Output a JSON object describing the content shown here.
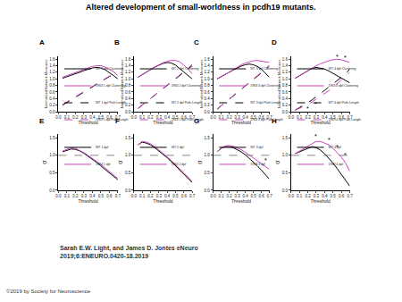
{
  "title": "Altered development of small-worldness in pcdh19 mutants.",
  "caption": [
    "Sarah E.W. Light, and James D. Jontes eNeuro",
    "2019;6:ENEURO.0420-18.2019"
  ],
  "copyright": "©2019 by Society for Neuroscience",
  "chart_data": [
    {
      "type": "line",
      "panel": "A",
      "x_label": "Threshold",
      "y_label": "Normalized Network Measures",
      "legend": "top left",
      "x": [
        0.05,
        0.1,
        0.15,
        0.2,
        0.25,
        0.3,
        0.35,
        0.4,
        0.45,
        0.5,
        0.55,
        0.6,
        0.65,
        0.7
      ],
      "xlim": [
        0,
        0.7
      ],
      "xticks": [
        {
          "value": 0,
          "label": "0.0"
        },
        0.1,
        0.2,
        0.3,
        0.4,
        0.5,
        0.6,
        0.7
      ],
      "ylim": [
        0,
        1.7
      ],
      "yticks": [
        {
          "value": 0,
          "label": "0.0"
        },
        0.2,
        0.4,
        0.6,
        0.8,
        {
          "value": 1,
          "label": "1.0"
        },
        1.2,
        1.4,
        1.6
      ],
      "series": [
        {
          "name": "WT 1 dpf Clustering",
          "color": "#000000",
          "line_style": "solid",
          "values": [
            1.02,
            1.06,
            1.1,
            1.15,
            1.2,
            1.25,
            1.3,
            1.33,
            1.35,
            1.33,
            1.28,
            1.2,
            1.1,
            1.0
          ]
        },
        {
          "name": "1963 1 dpf Clustering",
          "color": "#cc44bb",
          "line_style": "solid",
          "values": [
            1.05,
            1.1,
            1.15,
            1.2,
            1.25,
            1.3,
            1.35,
            1.38,
            1.4,
            1.4,
            1.36,
            1.3,
            1.22,
            1.1
          ]
        },
        {
          "name": "WT 1 dpf Path Length",
          "color": "#000000",
          "line_style": "dash",
          "values": [
            0.2,
            0.28,
            0.36,
            0.44,
            0.52,
            0.6,
            0.68,
            0.76,
            0.84,
            0.92,
            1.0,
            1.07,
            1.13,
            1.2
          ]
        },
        {
          "name": "1963 1 dpf Path Length",
          "color": "#cc44bb",
          "line_style": "dash",
          "values": [
            0.22,
            0.3,
            0.38,
            0.46,
            0.54,
            0.62,
            0.7,
            0.78,
            0.86,
            0.94,
            1.02,
            1.1,
            1.16,
            1.22
          ]
        }
      ],
      "annotations": []
    },
    {
      "type": "line",
      "panel": "B",
      "x_label": "Threshold",
      "y_label": "Normalized Network Measures",
      "legend": "top left",
      "x": [
        0.05,
        0.1,
        0.15,
        0.2,
        0.25,
        0.3,
        0.35,
        0.4,
        0.45,
        0.5,
        0.55,
        0.6,
        0.65,
        0.7
      ],
      "xlim": [
        0,
        0.7
      ],
      "xticks": [
        {
          "value": 0,
          "label": "0.0"
        },
        0.1,
        0.2,
        0.3,
        0.4,
        0.5,
        0.6,
        0.7
      ],
      "ylim": [
        0,
        1.7
      ],
      "yticks": [
        {
          "value": 0,
          "label": "0.0"
        },
        0.2,
        0.4,
        0.6,
        0.8,
        {
          "value": 1,
          "label": "1.0"
        },
        1.2,
        1.4,
        1.6
      ],
      "series": [
        {
          "name": "WT 2 dpf Clustering",
          "color": "#000000",
          "line_style": "solid",
          "values": [
            1.05,
            1.12,
            1.2,
            1.28,
            1.36,
            1.42,
            1.47,
            1.5,
            1.48,
            1.42,
            1.32,
            1.2,
            1.1,
            1.0
          ]
        },
        {
          "name": "1963 2 dpf Clustering",
          "color": "#cc44bb",
          "line_style": "solid",
          "values": [
            1.05,
            1.12,
            1.2,
            1.28,
            1.36,
            1.43,
            1.49,
            1.53,
            1.56,
            1.56,
            1.52,
            1.42,
            1.3,
            1.15
          ]
        },
        {
          "name": "WT 2 dpf Path Length",
          "color": "#000000",
          "line_style": "dash",
          "values": [
            0.1,
            0.2,
            0.3,
            0.4,
            0.5,
            0.6,
            0.7,
            0.8,
            0.9,
            1.0,
            1.1,
            1.2,
            1.3,
            1.4
          ]
        },
        {
          "name": "1963 2 dpf Path Length",
          "color": "#cc44bb",
          "line_style": "dash",
          "values": [
            0.1,
            0.2,
            0.3,
            0.4,
            0.5,
            0.6,
            0.7,
            0.8,
            0.9,
            1.0,
            1.1,
            1.2,
            1.32,
            1.45
          ]
        }
      ],
      "annotations": []
    },
    {
      "type": "line",
      "panel": "C",
      "x_label": "Threshold",
      "y_label": "Normalized Network Measures",
      "legend": "top left",
      "x": [
        0.05,
        0.1,
        0.15,
        0.2,
        0.25,
        0.3,
        0.35,
        0.4,
        0.45,
        0.5,
        0.55,
        0.6,
        0.65,
        0.7
      ],
      "xlim": [
        0,
        0.7
      ],
      "xticks": [
        {
          "value": 0,
          "label": "0.0"
        },
        0.1,
        0.2,
        0.3,
        0.4,
        0.5,
        0.6,
        0.7
      ],
      "ylim": [
        0,
        1.7
      ],
      "yticks": [
        {
          "value": 0,
          "label": "0.0"
        },
        0.2,
        0.4,
        0.6,
        0.8,
        {
          "value": 1,
          "label": "1.0"
        },
        1.2,
        1.4,
        1.6
      ],
      "series": [
        {
          "name": "WT 3 dpf Clustering",
          "color": "#000000",
          "line_style": "solid",
          "values": [
            1.0,
            1.06,
            1.13,
            1.2,
            1.27,
            1.34,
            1.39,
            1.43,
            1.45,
            1.43,
            1.38,
            1.3,
            1.18,
            1.05
          ]
        },
        {
          "name": "1963 3 dpf Clustering",
          "color": "#cc44bb",
          "line_style": "solid",
          "values": [
            1.0,
            1.06,
            1.13,
            1.2,
            1.28,
            1.36,
            1.43,
            1.48,
            1.52,
            1.55,
            1.56,
            1.54,
            1.52,
            1.5
          ]
        },
        {
          "name": "WT 3 dpf Path Length",
          "color": "#000000",
          "line_style": "dash",
          "values": [
            0.08,
            0.18,
            0.28,
            0.38,
            0.48,
            0.58,
            0.68,
            0.78,
            0.88,
            0.98,
            1.08,
            1.18,
            1.28,
            1.38
          ]
        },
        {
          "name": "1963 3 dpf Path Length",
          "color": "#cc44bb",
          "line_style": "dash",
          "values": [
            0.08,
            0.18,
            0.28,
            0.38,
            0.48,
            0.58,
            0.68,
            0.78,
            0.88,
            0.98,
            1.08,
            1.2,
            1.3,
            1.42
          ]
        }
      ],
      "annotations": []
    },
    {
      "type": "line",
      "panel": "D",
      "x_label": "Threshold",
      "y_label": "Normalized Network Measures",
      "legend": "top left",
      "x": [
        0.05,
        0.1,
        0.15,
        0.2,
        0.25,
        0.3,
        0.35,
        0.4,
        0.45,
        0.5,
        0.55,
        0.6,
        0.65,
        0.7
      ],
      "xlim": [
        0,
        0.7
      ],
      "xticks": [
        {
          "value": 0,
          "label": "0.0"
        },
        0.1,
        0.2,
        0.3,
        0.4,
        0.5,
        0.6,
        0.7
      ],
      "ylim": [
        0,
        1.7
      ],
      "yticks": [
        {
          "value": 0,
          "label": "0.0"
        },
        0.2,
        0.4,
        0.6,
        0.8,
        {
          "value": 1,
          "label": "1.0"
        },
        1.2,
        1.4,
        1.6
      ],
      "series": [
        {
          "name": "WT 4 dpf Clustering",
          "color": "#000000",
          "line_style": "solid",
          "values": [
            1.02,
            1.1,
            1.18,
            1.26,
            1.32,
            1.35,
            1.33,
            1.3,
            1.24,
            1.17,
            1.1,
            1.02,
            0.95,
            0.88
          ]
        },
        {
          "name": "1963 4 dpf Clustering",
          "color": "#cc44bb",
          "line_style": "solid",
          "values": [
            1.02,
            1.1,
            1.18,
            1.26,
            1.33,
            1.4,
            1.46,
            1.51,
            1.55,
            1.58,
            1.6,
            1.58,
            1.55,
            1.5
          ]
        },
        {
          "name": "WT 4 dpf Path Length",
          "color": "#000000",
          "line_style": "dash",
          "values": [
            0.05,
            0.12,
            0.2,
            0.28,
            0.36,
            0.45,
            0.55,
            0.65,
            0.75,
            0.85,
            0.95,
            1.05,
            1.15,
            1.3
          ]
        },
        {
          "name": "1963 4 dpf Path Length",
          "color": "#cc44bb",
          "line_style": "dash",
          "values": [
            0.05,
            0.1,
            0.16,
            0.22,
            0.3,
            0.38,
            0.46,
            0.55,
            0.64,
            0.74,
            0.85,
            0.96,
            1.08,
            1.2
          ]
        }
      ],
      "annotations": [
        {
          "x": 0.55,
          "y": 1.68,
          "text": "*"
        },
        {
          "x": 0.65,
          "y": 1.64,
          "text": "*"
        },
        {
          "x": 0.2,
          "y": 0.1,
          "text": "*"
        },
        {
          "x": 0.3,
          "y": 0.22,
          "text": "*"
        }
      ]
    },
    {
      "type": "line",
      "panel": "E",
      "x_label": "Threshold",
      "y_label": "σ",
      "legend": "top left",
      "reference_line": 1.0,
      "x": [
        0.05,
        0.1,
        0.15,
        0.2,
        0.25,
        0.3,
        0.35,
        0.4,
        0.45,
        0.5,
        0.55,
        0.6,
        0.65,
        0.7
      ],
      "xlim": [
        0,
        0.7
      ],
      "xticks": [
        {
          "value": 0,
          "label": "0.0"
        },
        0.1,
        0.2,
        0.3,
        0.4,
        0.5,
        0.6,
        0.7
      ],
      "ylim": [
        0,
        1.6
      ],
      "yticks": [
        {
          "value": 0,
          "label": "0.0"
        },
        0.5,
        {
          "value": 1,
          "label": "1.0"
        },
        1.5
      ],
      "series": [
        {
          "name": "WT 1 dpf",
          "color": "#000000",
          "line_style": "solid",
          "values": [
            1.1,
            1.15,
            1.18,
            1.17,
            1.13,
            1.06,
            0.98,
            0.9,
            0.8,
            0.7,
            0.6,
            0.5,
            0.4,
            0.3
          ]
        },
        {
          "name": "1963 1 dpf",
          "color": "#cc44bb",
          "line_style": "solid",
          "values": [
            1.12,
            1.18,
            1.22,
            1.2,
            1.15,
            1.08,
            1.0,
            0.92,
            0.83,
            0.74,
            0.64,
            0.54,
            0.44,
            0.34
          ]
        }
      ],
      "annotations": []
    },
    {
      "type": "line",
      "panel": "F",
      "x_label": "Threshold",
      "y_label": "σ",
      "legend": "top left",
      "reference_line": 1.0,
      "x": [
        0.05,
        0.1,
        0.15,
        0.2,
        0.25,
        0.3,
        0.35,
        0.4,
        0.45,
        0.5,
        0.55,
        0.6,
        0.65,
        0.7
      ],
      "xlim": [
        0,
        0.7
      ],
      "xticks": [
        {
          "value": 0,
          "label": "0.0"
        },
        0.1,
        0.2,
        0.3,
        0.4,
        0.5,
        0.6,
        0.7
      ],
      "ylim": [
        0,
        1.6
      ],
      "yticks": [
        {
          "value": 0,
          "label": "0.0"
        },
        0.5,
        {
          "value": 1,
          "label": "1.0"
        },
        1.5
      ],
      "series": [
        {
          "name": "WT 2 dpf",
          "color": "#000000",
          "line_style": "solid",
          "values": [
            1.3,
            1.38,
            1.35,
            1.3,
            1.22,
            1.13,
            1.03,
            0.93,
            0.82,
            0.7,
            0.58,
            0.46,
            0.34,
            0.22
          ]
        },
        {
          "name": "1963 2 dpf",
          "color": "#cc44bb",
          "line_style": "solid",
          "values": [
            1.3,
            1.4,
            1.38,
            1.33,
            1.25,
            1.16,
            1.06,
            0.96,
            0.85,
            0.74,
            0.62,
            0.5,
            0.38,
            0.26
          ]
        }
      ],
      "annotations": []
    },
    {
      "type": "line",
      "panel": "G",
      "x_label": "Threshold",
      "y_label": "σ",
      "legend": "top left",
      "reference_line": 1.0,
      "x": [
        0.05,
        0.1,
        0.15,
        0.2,
        0.25,
        0.3,
        0.35,
        0.4,
        0.45,
        0.5,
        0.55,
        0.6,
        0.65,
        0.7
      ],
      "xlim": [
        0,
        0.7
      ],
      "xticks": [
        {
          "value": 0,
          "label": "0.0"
        },
        0.1,
        0.2,
        0.3,
        0.4,
        0.5,
        0.6,
        0.7
      ],
      "ylim": [
        0,
        1.6
      ],
      "yticks": [
        {
          "value": 0,
          "label": "0.0"
        },
        0.5,
        {
          "value": 1,
          "label": "1.0"
        },
        1.5
      ],
      "series": [
        {
          "name": "WT 3 dpf",
          "color": "#000000",
          "line_style": "solid",
          "values": [
            1.1,
            1.2,
            1.25,
            1.25,
            1.22,
            1.17,
            1.1,
            1.02,
            0.92,
            0.82,
            0.7,
            0.58,
            0.45,
            0.32
          ]
        },
        {
          "name": "1963 3 dpf",
          "color": "#cc44bb",
          "line_style": "solid",
          "values": [
            1.1,
            1.2,
            1.27,
            1.28,
            1.26,
            1.22,
            1.16,
            1.09,
            1.01,
            0.93,
            0.85,
            0.77,
            0.68,
            0.6
          ]
        }
      ],
      "annotations": [
        {
          "x": 0.65,
          "y": 0.85,
          "text": "*"
        }
      ]
    },
    {
      "type": "line",
      "panel": "H",
      "x_label": "Threshold",
      "y_label": "σ",
      "legend": "top left",
      "reference_line": 1.0,
      "x": [
        0.05,
        0.1,
        0.15,
        0.2,
        0.25,
        0.3,
        0.35,
        0.4,
        0.45,
        0.5,
        0.55,
        0.6,
        0.65,
        0.7
      ],
      "xlim": [
        0,
        0.7
      ],
      "xticks": [
        {
          "value": 0,
          "label": "0.0"
        },
        0.1,
        0.2,
        0.3,
        0.4,
        0.5,
        0.6,
        0.7
      ],
      "ylim": [
        0,
        1.6
      ],
      "yticks": [
        {
          "value": 0,
          "label": "0.0"
        },
        0.5,
        {
          "value": 1,
          "label": "1.0"
        },
        1.5
      ],
      "series": [
        {
          "name": "WT 4 dpf",
          "color": "#000000",
          "line_style": "solid",
          "values": [
            1.05,
            1.1,
            1.17,
            1.22,
            1.25,
            1.22,
            1.15,
            1.05,
            0.92,
            0.78,
            0.62,
            0.45,
            0.28,
            0.12
          ]
        },
        {
          "name": "1963 4 dpf",
          "color": "#cc44bb",
          "line_style": "solid",
          "values": [
            1.05,
            1.12,
            1.2,
            1.28,
            1.35,
            1.4,
            1.4,
            1.36,
            1.3,
            1.2,
            1.08,
            0.95,
            0.78,
            0.55
          ]
        }
      ],
      "annotations": [
        {
          "x": 0.3,
          "y": 1.55,
          "text": "*"
        },
        {
          "x": 0.45,
          "y": 1.45,
          "text": "*"
        },
        {
          "x": 0.55,
          "y": 1.25,
          "text": "*"
        },
        {
          "x": 0.65,
          "y": 1.0,
          "text": "*"
        }
      ]
    }
  ]
}
